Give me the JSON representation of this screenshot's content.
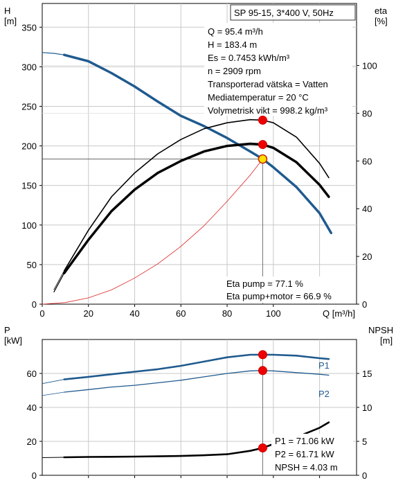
{
  "chart_data": [
    {
      "type": "line",
      "title": "SP 95-15, 3*400 V, 50Hz",
      "left_axis": {
        "label_top": "H",
        "label_unit": "[m]",
        "range": [
          0,
          380
        ],
        "ticks": [
          0,
          50,
          100,
          150,
          200,
          250,
          300,
          350
        ]
      },
      "right_axis": {
        "label_top": "eta",
        "label_unit": "[%]",
        "range": [
          0,
          126
        ],
        "ticks": [
          0,
          20,
          40,
          60,
          80,
          100
        ]
      },
      "x_axis": {
        "label": "Q [m³/h]",
        "range": [
          0,
          136
        ],
        "ticks": [
          0,
          20,
          40,
          60,
          80,
          100
        ]
      },
      "grid": true,
      "info_lines": [
        "Q = 95.4 m³/h",
        "H = 183.4 m",
        "Es = 0.7453 kWh/m³",
        "n = 2909 rpm",
        "Transporterad vätska = Vatten",
        "Mediatemperatur = 20 °C",
        "Volymetrisk vikt = 998.2 kg/m³"
      ],
      "eta_lines": [
        "Eta pump = 77.1 %",
        "Eta pump+motor = 66.9 %"
      ],
      "series": [
        {
          "color": "#1f5a8e",
          "axis": "left",
          "width": 3.5,
          "x": [
            0,
            5,
            9.5,
            20,
            30,
            40,
            50,
            60,
            70,
            80,
            90,
            95.4,
            100,
            110,
            120,
            125
          ],
          "y": [
            318,
            317,
            315,
            307,
            292,
            275,
            256,
            238,
            225,
            210,
            193,
            183.4,
            173,
            148,
            115,
            90
          ],
          "dash_until_x": 9.5
        },
        {
          "color": "#000000",
          "axis": "right",
          "width": 1.6,
          "x": [
            5,
            9.5,
            20,
            30,
            40,
            50,
            60,
            70,
            80,
            90,
            95.4,
            100,
            110,
            120,
            124
          ],
          "y": [
            6,
            14,
            31,
            45,
            55,
            63,
            69,
            73.5,
            76,
            77.3,
            77.1,
            76,
            70,
            59,
            53
          ],
          "dash_until_x": 9.5
        },
        {
          "color": "#000000",
          "axis": "right",
          "width": 3.5,
          "x": [
            5,
            9.5,
            20,
            30,
            40,
            50,
            60,
            70,
            80,
            90,
            95.4,
            100,
            110,
            120,
            124
          ],
          "y": [
            5,
            13,
            27,
            39,
            48,
            55,
            60,
            64,
            66.3,
            67.2,
            66.9,
            65.5,
            59.5,
            50,
            45
          ],
          "dash_until_x": 9.5
        },
        {
          "color": "#dd2222",
          "axis": "left",
          "width": 0.8,
          "x": [
            0,
            10,
            20,
            30,
            40,
            50,
            60,
            70,
            80,
            90,
            95.4
          ],
          "y": [
            0,
            2,
            8,
            18,
            33,
            51,
            73,
            99,
            130,
            163,
            183.4
          ]
        }
      ],
      "operating_points": [
        {
          "x": 95.4,
          "y": 77.1,
          "axis": "right"
        },
        {
          "x": 95.4,
          "y": 183.4,
          "axis": "left",
          "style": "yellow"
        },
        {
          "x": 95.4,
          "y": 66.9,
          "axis": "right"
        }
      ],
      "crosshair": {
        "x": 95.4,
        "y": 183.4
      }
    },
    {
      "type": "line",
      "left_axis": {
        "label_top": "P",
        "label_unit": "[kW]",
        "range": [
          0,
          80
        ],
        "ticks": [
          0,
          20,
          40,
          60
        ]
      },
      "right_axis": {
        "label_top": "NPSH",
        "label_unit": "[m]",
        "range": [
          0,
          20
        ],
        "ticks": [
          0,
          5,
          10,
          15
        ]
      },
      "x_axis": {
        "range": [
          0,
          136
        ]
      },
      "grid": true,
      "info_lines": [
        "P1 = 71.06 kW",
        "P2 = 61.71 kW",
        "NPSH = 4.03 m"
      ],
      "series": [
        {
          "name": "P1",
          "color": "#1f5a8e",
          "axis": "left",
          "width": 2.6,
          "x": [
            0,
            9.5,
            20,
            30,
            40,
            50,
            60,
            70,
            80,
            90,
            95.4,
            100,
            110,
            120,
            124
          ],
          "y": [
            54,
            56.5,
            58,
            59.5,
            61,
            62.5,
            64.5,
            67,
            69.5,
            71,
            71.06,
            71,
            70.5,
            69,
            68.5
          ],
          "dash_until_x": 9.5
        },
        {
          "name": "P2",
          "color": "#1f5a8e",
          "axis": "left",
          "width": 1.3,
          "x": [
            0,
            9.5,
            20,
            30,
            40,
            50,
            60,
            70,
            80,
            90,
            95.4,
            100,
            110,
            120,
            124
          ],
          "y": [
            47,
            49,
            50.5,
            52,
            53,
            54.5,
            56,
            58,
            60,
            61.5,
            61.71,
            61.5,
            60.5,
            59.5,
            59
          ],
          "dash_until_x": 9.5
        },
        {
          "color": "#000000",
          "axis": "right",
          "width": 2.6,
          "x": [
            0,
            9.5,
            20,
            30,
            40,
            50,
            60,
            70,
            80,
            90,
            95.4,
            100,
            110,
            120,
            124
          ],
          "y": [
            2.6,
            2.65,
            2.7,
            2.72,
            2.75,
            2.8,
            2.85,
            2.95,
            3.1,
            3.6,
            4.03,
            4.6,
            5.6,
            7,
            7.8
          ],
          "dash_until_x": 9.5
        }
      ],
      "operating_points": [
        {
          "x": 95.4,
          "y": 71.06,
          "axis": "left"
        },
        {
          "x": 95.4,
          "y": 61.71,
          "axis": "left"
        },
        {
          "x": 95.4,
          "y": 4.03,
          "axis": "right"
        }
      ]
    }
  ]
}
